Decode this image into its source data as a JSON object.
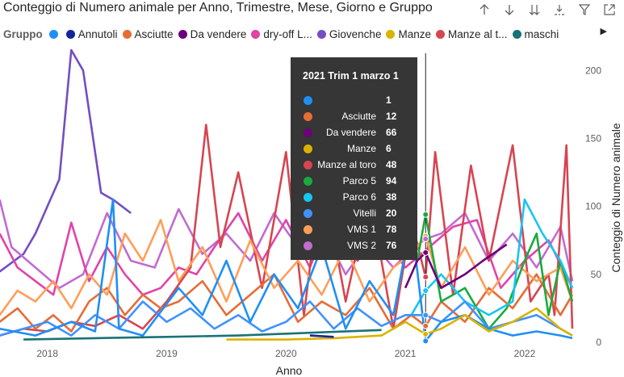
{
  "title": "Conteggio di Numero animale per Anno, Trimestre, Mese, Giorno e Gruppo",
  "toolbar": {
    "icons": [
      "arrow-up-icon",
      "arrow-down-icon",
      "double-arrow-down-icon",
      "expand-hierarchy-icon",
      "filter-icon",
      "focus-mode-icon",
      "more-options-icon"
    ]
  },
  "legend": {
    "title": "Gruppo",
    "items": [
      {
        "label": "",
        "color": "#1f8ff5"
      },
      {
        "label": "Annutoli",
        "color": "#12239e"
      },
      {
        "label": "Asciutte",
        "color": "#e66c37"
      },
      {
        "label": "Da vendere",
        "color": "#6b007b"
      },
      {
        "label": "dry-off L...",
        "color": "#e044a7"
      },
      {
        "label": "Giovenche",
        "color": "#744ec2"
      },
      {
        "label": "Manze",
        "color": "#d9b300"
      },
      {
        "label": "Manze al t...",
        "color": "#d64550"
      },
      {
        "label": "maschi",
        "color": "#197278"
      }
    ]
  },
  "tooltip": {
    "title": "2021 Trim 1 marzo 1",
    "rows": [
      {
        "label": "",
        "value": "1",
        "color": "#1f8ff5"
      },
      {
        "label": "Asciutte",
        "value": "12",
        "color": "#e66c37"
      },
      {
        "label": "Da vendere",
        "value": "66",
        "color": "#6b007b"
      },
      {
        "label": "Manze",
        "value": "6",
        "color": "#d9b300"
      },
      {
        "label": "Manze al toro",
        "value": "48",
        "color": "#d64550"
      },
      {
        "label": "Parco 5",
        "value": "94",
        "color": "#1aab40"
      },
      {
        "label": "Parco 6",
        "value": "38",
        "color": "#15c6f4"
      },
      {
        "label": "Vitelli",
        "value": "20",
        "color": "#4092ff"
      },
      {
        "label": "VMS 1",
        "value": "78",
        "color": "#ff9e58"
      },
      {
        "label": "VMS 2",
        "value": "76",
        "color": "#c26bd1"
      }
    ]
  },
  "chart_data": {
    "type": "line",
    "title": "Conteggio di Numero animale per Anno, Trimestre, Mese, Giorno e Gruppo",
    "xlabel": "Anno",
    "ylabel": "Conteggio di Numero animale",
    "x_ticks": [
      "2018",
      "2019",
      "2020",
      "2021",
      "2022"
    ],
    "xlim": [
      2017.63,
      2022.42
    ],
    "y_ticks": [
      0,
      50,
      100,
      150,
      200
    ],
    "ylim": [
      0,
      215
    ],
    "y_axis_position": "right",
    "grid": false,
    "hover_x": 2021.17,
    "series": [
      {
        "name": "Giovenche",
        "color": "#744ec2",
        "x": [
          2017.6,
          2017.8,
          2017.9,
          2018.0,
          2018.1,
          2018.2,
          2018.3,
          2018.45,
          2018.55,
          2018.7
        ],
        "y": [
          52,
          65,
          80,
          100,
          120,
          215,
          200,
          110,
          105,
          95
        ]
      },
      {
        "name": "VMS 2",
        "color": "#c26bd1",
        "x": [
          2017.6,
          2017.7,
          2017.9,
          2018.1,
          2018.3,
          2018.5,
          2018.7,
          2018.9,
          2019.1,
          2019.3,
          2019.5,
          2019.7,
          2019.9,
          2020.1,
          2020.3,
          2020.5,
          2020.7,
          2020.9,
          2021.05,
          2021.17,
          2021.3,
          2021.5,
          2021.7,
          2021.9,
          2022.1,
          2022.3,
          2022.4
        ],
        "y": [
          105,
          70,
          55,
          40,
          50,
          95,
          60,
          55,
          98,
          65,
          80,
          60,
          95,
          70,
          85,
          50,
          75,
          55,
          68,
          76,
          80,
          95,
          60,
          80,
          55,
          85,
          45
        ]
      },
      {
        "name": "dry-off L...",
        "color": "#e044a7",
        "x": [
          2017.6,
          2017.75,
          2017.9,
          2018.05,
          2018.2,
          2018.35,
          2018.5,
          2018.65,
          2018.8,
          2018.95,
          2019.1,
          2019.25,
          2019.4,
          2019.6,
          2019.8,
          2020.0,
          2020.2,
          2020.4,
          2020.6,
          2020.8,
          2021.0,
          2021.2,
          2021.4,
          2021.6,
          2021.8,
          2022.0,
          2022.2,
          2022.4
        ],
        "y": [
          80,
          55,
          45,
          35,
          88,
          45,
          70,
          50,
          35,
          40,
          55,
          50,
          70,
          95,
          60,
          90,
          55,
          100,
          60,
          80,
          55,
          70,
          85,
          90,
          40,
          60,
          75,
          40
        ]
      },
      {
        "name": "Manze al toro",
        "color": "#d64550",
        "x": [
          2017.6,
          2017.8,
          2018.0,
          2018.2,
          2018.4,
          2018.6,
          2018.8,
          2019.0,
          2019.2,
          2019.33,
          2019.45,
          2019.6,
          2019.8,
          2020.0,
          2020.15,
          2020.3,
          2020.5,
          2020.7,
          2020.9,
          2021.05,
          2021.17,
          2021.25,
          2021.4,
          2021.55,
          2021.7,
          2021.9,
          2022.05,
          2022.2,
          2022.25,
          2022.35,
          2022.4
        ],
        "y": [
          5,
          10,
          8,
          15,
          12,
          20,
          10,
          30,
          55,
          160,
          70,
          125,
          40,
          140,
          20,
          125,
          30,
          110,
          10,
          90,
          48,
          140,
          35,
          130,
          60,
          145,
          30,
          50,
          20,
          145,
          10
        ]
      },
      {
        "name": "Asciutte",
        "color": "#e66c37",
        "x": [
          2017.6,
          2017.75,
          2017.9,
          2018.05,
          2018.2,
          2018.35,
          2018.5,
          2018.65,
          2018.8,
          2018.95,
          2019.1,
          2019.3,
          2019.5,
          2019.7,
          2019.9,
          2020.1,
          2020.3,
          2020.5,
          2020.7,
          2020.9,
          2021.05,
          2021.17,
          2021.3,
          2021.5,
          2021.7,
          2021.9,
          2022.1,
          2022.3,
          2022.4
        ],
        "y": [
          15,
          25,
          10,
          20,
          8,
          30,
          40,
          20,
          35,
          25,
          30,
          45,
          20,
          35,
          50,
          15,
          30,
          20,
          40,
          10,
          20,
          12,
          30,
          15,
          40,
          25,
          50,
          20,
          35
        ]
      },
      {
        "name": "VMS 1",
        "color": "#ff9e58",
        "x": [
          2017.6,
          2017.75,
          2017.9,
          2018.05,
          2018.2,
          2018.35,
          2018.5,
          2018.65,
          2018.8,
          2018.95,
          2019.1,
          2019.3,
          2019.5,
          2019.7,
          2019.9,
          2020.1,
          2020.3,
          2020.5,
          2020.7,
          2020.9,
          2021.05,
          2021.17,
          2021.3,
          2021.5,
          2021.7,
          2021.9,
          2022.1,
          2022.3,
          2022.4
        ],
        "y": [
          20,
          38,
          30,
          45,
          25,
          50,
          35,
          80,
          60,
          90,
          45,
          70,
          30,
          75,
          40,
          60,
          35,
          70,
          30,
          55,
          65,
          78,
          40,
          70,
          35,
          60,
          45,
          55,
          30
        ]
      },
      {
        "name": "Parco 5",
        "color": "#1aab40",
        "x": [
          2021.1,
          2021.17,
          2021.3,
          2021.5,
          2021.7,
          2021.85,
          2022.0,
          2022.1,
          2022.2,
          2022.3,
          2022.4
        ],
        "y": [
          60,
          94,
          30,
          40,
          10,
          25,
          60,
          80,
          20,
          60,
          30
        ]
      },
      {
        "name": "Parco 6",
        "color": "#15c6f4",
        "x": [
          2021.05,
          2021.17,
          2021.3,
          2021.5,
          2021.7,
          2021.9,
          2022.0,
          2022.15,
          2022.3,
          2022.4
        ],
        "y": [
          20,
          38,
          50,
          30,
          20,
          30,
          105,
          80,
          60,
          40
        ]
      },
      {
        "name": "Vitelli",
        "color": "#4092ff",
        "x": [
          2017.6,
          2017.8,
          2018.0,
          2018.2,
          2018.4,
          2018.6,
          2018.8,
          2019.0,
          2019.2,
          2019.4,
          2019.6,
          2019.8,
          2020.0,
          2020.2,
          2020.4,
          2020.6,
          2020.8,
          2021.0,
          2021.17,
          2021.3,
          2021.5,
          2021.7,
          2021.9,
          2022.1,
          2022.3,
          2022.4
        ],
        "y": [
          5,
          10,
          15,
          5,
          20,
          10,
          30,
          15,
          25,
          10,
          20,
          8,
          15,
          30,
          10,
          25,
          12,
          20,
          20,
          15,
          30,
          10,
          15,
          20,
          10,
          5
        ]
      },
      {
        "name": "",
        "color": "#1f8ff5",
        "x": [
          2017.6,
          2017.9,
          2018.2,
          2018.4,
          2018.55,
          2018.6,
          2018.8,
          2019.1,
          2019.3,
          2019.5,
          2019.7,
          2019.9,
          2020.1,
          2020.3,
          2020.5,
          2020.7,
          2020.9,
          2021.05,
          2021.17,
          2021.3,
          2021.5,
          2021.7,
          2021.9,
          2022.1,
          2022.3,
          2022.4
        ],
        "y": [
          10,
          5,
          15,
          8,
          105,
          10,
          5,
          40,
          20,
          60,
          15,
          50,
          25,
          70,
          10,
          45,
          20,
          90,
          1,
          15,
          20,
          10,
          5,
          8,
          5,
          3
        ]
      },
      {
        "name": "Da vendere",
        "color": "#6b007b",
        "x": [
          2021.0,
          2021.1,
          2021.17,
          2021.3,
          2021.5,
          2021.65,
          2021.85
        ],
        "y": [
          40,
          60,
          66,
          40,
          50,
          60,
          72
        ]
      },
      {
        "name": "Manze",
        "color": "#d9b300",
        "x": [
          2019.5,
          2020.0,
          2020.4,
          2020.8,
          2021.0,
          2021.17,
          2021.3,
          2021.5,
          2021.7,
          2021.9,
          2022.1,
          2022.3,
          2022.4
        ],
        "y": [
          2,
          2,
          3,
          5,
          15,
          6,
          10,
          20,
          8,
          15,
          25,
          10,
          5
        ]
      },
      {
        "name": "maschi",
        "color": "#197278",
        "x": [
          2017.8,
          2018.4,
          2019.0,
          2019.6,
          2020.2,
          2020.8
        ],
        "y": [
          2,
          3,
          4,
          5,
          7,
          9
        ]
      },
      {
        "name": "Annutoli",
        "color": "#12239e",
        "x": [
          2020.2,
          2020.4
        ],
        "y": [
          5,
          4
        ]
      }
    ]
  }
}
